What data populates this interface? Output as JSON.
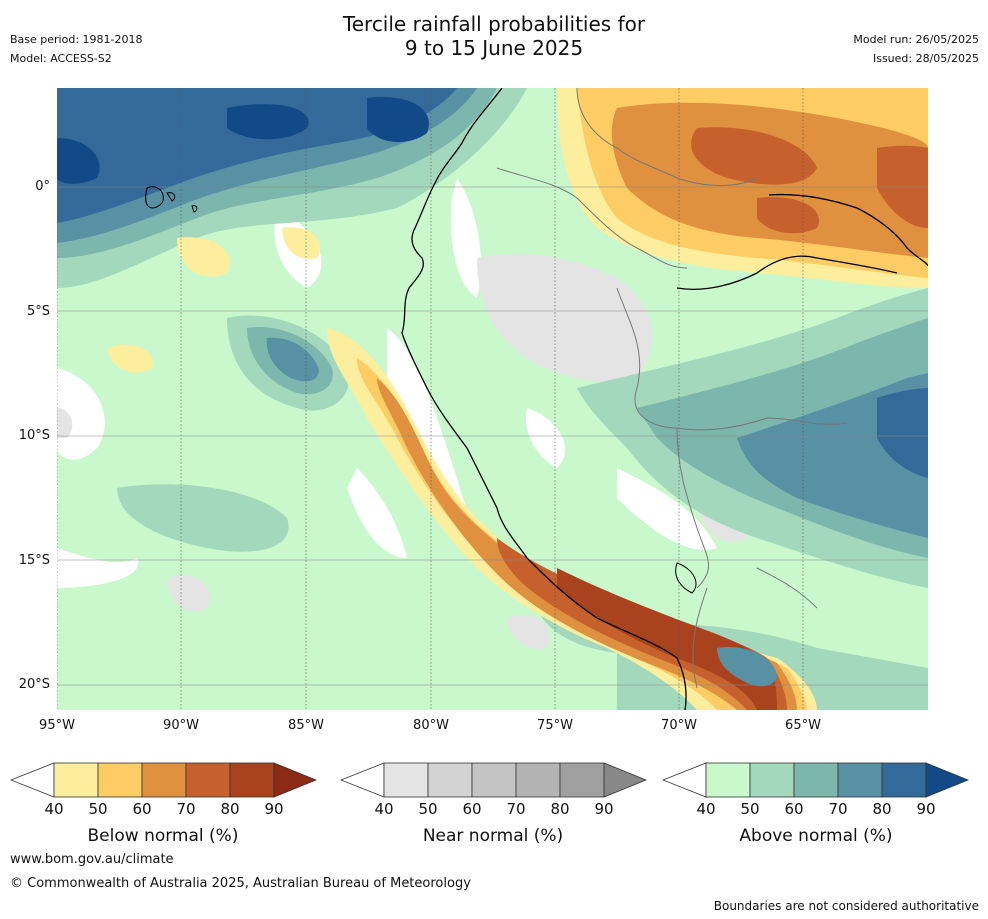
{
  "title_line1": "Tercile rainfall probabilities for",
  "title_line2": "9 to 15 June 2025",
  "base_period": "Base period: 1981-2018",
  "model": "Model: ACCESS-S2",
  "model_run": "Model run: 26/05/2025",
  "issued": "Issued: 28/05/2025",
  "y_ticks": [
    "0°",
    "5°S",
    "10°S",
    "15°S",
    "20°S"
  ],
  "x_ticks": [
    "95°W",
    "90°W",
    "85°W",
    "80°W",
    "75°W",
    "70°W",
    "65°W"
  ],
  "colorbars": [
    {
      "label": "Below normal (%)",
      "ticks": [
        "40",
        "50",
        "60",
        "70",
        "80",
        "90"
      ],
      "colors": [
        "#ffffff",
        "#fdee9e",
        "#fdcc65",
        "#e0913f",
        "#c6602c",
        "#a8421f",
        "#8c2a15"
      ]
    },
    {
      "label": "Near normal (%)",
      "ticks": [
        "40",
        "50",
        "60",
        "70",
        "80",
        "90"
      ],
      "colors": [
        "#ffffff",
        "#e4e4e4",
        "#d3d3d3",
        "#c3c3c3",
        "#b3b3b3",
        "#a0a0a0",
        "#888888"
      ]
    },
    {
      "label": "Above normal (%)",
      "ticks": [
        "40",
        "50",
        "60",
        "70",
        "80",
        "90"
      ],
      "colors": [
        "#ffffff",
        "#c8f8cc",
        "#a3d8bc",
        "#7cb6ad",
        "#5890a4",
        "#336a9a",
        "#114a86"
      ]
    }
  ],
  "footer_url": "www.bom.gov.au/climate",
  "footer_copyright": "© Commonwealth of Australia 2025, Australian Bureau of Meteorology",
  "footer_note": "Boundaries are not considered authoritative"
}
